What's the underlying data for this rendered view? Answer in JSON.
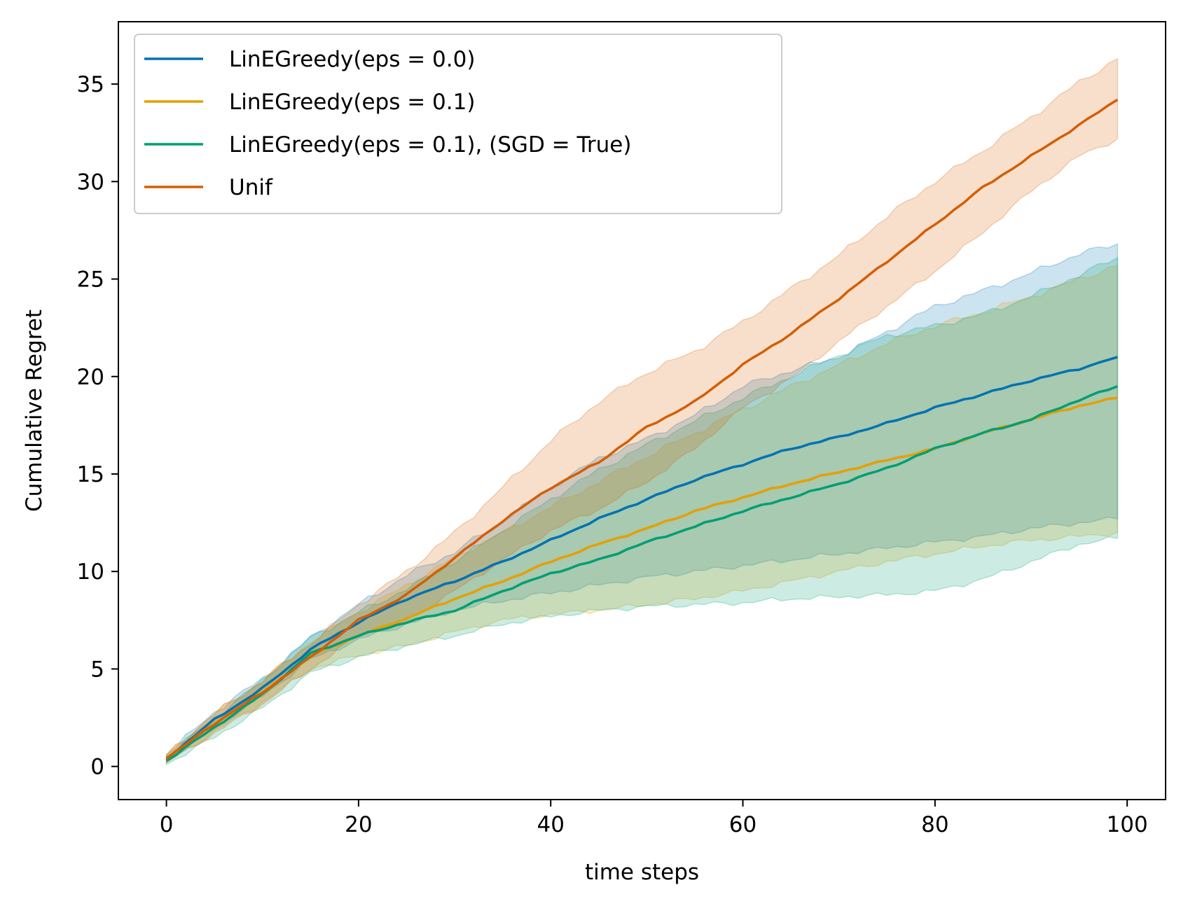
{
  "chart_data": {
    "type": "line",
    "title": "",
    "xlabel": "time steps",
    "ylabel": "Cumulative Regret",
    "xlim": [
      -5,
      104
    ],
    "ylim": [
      -1.7,
      38.2
    ],
    "xticks": [
      0,
      20,
      40,
      60,
      80,
      100
    ],
    "yticks": [
      0,
      5,
      10,
      15,
      20,
      25,
      30,
      35
    ],
    "grid": false,
    "legend_position": "upper-left",
    "x_range": [
      0,
      99
    ],
    "series": [
      {
        "name": "LinEGreedy(eps = 0.0)",
        "color": "#0072b2",
        "mean_points": [
          [
            0,
            0.4
          ],
          [
            5,
            2.4
          ],
          [
            10,
            4.0
          ],
          [
            15,
            6.0
          ],
          [
            20,
            7.4
          ],
          [
            25,
            8.6
          ],
          [
            30,
            9.5
          ],
          [
            35,
            10.5
          ],
          [
            40,
            11.6
          ],
          [
            45,
            12.7
          ],
          [
            50,
            13.7
          ],
          [
            55,
            14.7
          ],
          [
            60,
            15.5
          ],
          [
            65,
            16.3
          ],
          [
            70,
            16.9
          ],
          [
            75,
            17.6
          ],
          [
            80,
            18.4
          ],
          [
            85,
            19.1
          ],
          [
            90,
            19.8
          ],
          [
            95,
            20.4
          ],
          [
            99,
            21.0
          ]
        ],
        "band_upper": [
          [
            0,
            0.6
          ],
          [
            5,
            2.8
          ],
          [
            10,
            4.5
          ],
          [
            15,
            6.6
          ],
          [
            20,
            8.3
          ],
          [
            25,
            9.8
          ],
          [
            30,
            11.0
          ],
          [
            35,
            12.6
          ],
          [
            40,
            14.3
          ],
          [
            45,
            15.8
          ],
          [
            50,
            16.8
          ],
          [
            55,
            18.0
          ],
          [
            60,
            19.5
          ],
          [
            65,
            20.3
          ],
          [
            70,
            21.0
          ],
          [
            75,
            22.3
          ],
          [
            80,
            23.6
          ],
          [
            85,
            24.4
          ],
          [
            90,
            25.3
          ],
          [
            95,
            26.3
          ],
          [
            99,
            26.8
          ]
        ],
        "band_lower": [
          [
            0,
            0.2
          ],
          [
            5,
            2.0
          ],
          [
            10,
            3.6
          ],
          [
            15,
            5.5
          ],
          [
            20,
            6.5
          ],
          [
            25,
            7.3
          ],
          [
            30,
            8.0
          ],
          [
            35,
            8.5
          ],
          [
            40,
            8.9
          ],
          [
            45,
            9.3
          ],
          [
            50,
            9.7
          ],
          [
            55,
            10.0
          ],
          [
            60,
            10.3
          ],
          [
            65,
            10.6
          ],
          [
            70,
            10.9
          ],
          [
            75,
            11.2
          ],
          [
            80,
            11.5
          ],
          [
            85,
            11.8
          ],
          [
            90,
            12.2
          ],
          [
            95,
            12.5
          ],
          [
            99,
            12.7
          ]
        ]
      },
      {
        "name": "LinEGreedy(eps = 0.1)",
        "color": "#e69f00",
        "mean_points": [
          [
            0,
            0.4
          ],
          [
            5,
            2.2
          ],
          [
            10,
            3.8
          ],
          [
            15,
            5.7
          ],
          [
            20,
            6.7
          ],
          [
            25,
            7.6
          ],
          [
            30,
            8.6
          ],
          [
            35,
            9.5
          ],
          [
            40,
            10.5
          ],
          [
            45,
            11.4
          ],
          [
            50,
            12.2
          ],
          [
            55,
            13.1
          ],
          [
            60,
            13.8
          ],
          [
            65,
            14.5
          ],
          [
            70,
            15.1
          ],
          [
            75,
            15.7
          ],
          [
            80,
            16.3
          ],
          [
            85,
            17.1
          ],
          [
            90,
            17.8
          ],
          [
            95,
            18.5
          ],
          [
            99,
            18.9
          ]
        ],
        "band_upper": [
          [
            0,
            0.6
          ],
          [
            5,
            2.7
          ],
          [
            10,
            4.4
          ],
          [
            15,
            6.4
          ],
          [
            20,
            7.9
          ],
          [
            25,
            9.3
          ],
          [
            30,
            10.7
          ],
          [
            35,
            12.0
          ],
          [
            40,
            13.3
          ],
          [
            45,
            14.6
          ],
          [
            50,
            15.9
          ],
          [
            55,
            17.1
          ],
          [
            60,
            18.3
          ],
          [
            65,
            19.5
          ],
          [
            70,
            20.6
          ],
          [
            75,
            21.7
          ],
          [
            80,
            22.6
          ],
          [
            85,
            23.3
          ],
          [
            90,
            24.1
          ],
          [
            95,
            25.0
          ],
          [
            99,
            25.7
          ]
        ],
        "band_lower": [
          [
            0,
            0.2
          ],
          [
            5,
            1.8
          ],
          [
            10,
            3.3
          ],
          [
            15,
            5.0
          ],
          [
            20,
            5.7
          ],
          [
            25,
            6.2
          ],
          [
            30,
            6.9
          ],
          [
            35,
            7.5
          ],
          [
            40,
            7.8
          ],
          [
            45,
            8.0
          ],
          [
            50,
            8.3
          ],
          [
            55,
            8.6
          ],
          [
            60,
            9.0
          ],
          [
            65,
            9.5
          ],
          [
            70,
            10.0
          ],
          [
            75,
            10.5
          ],
          [
            80,
            10.9
          ],
          [
            85,
            11.3
          ],
          [
            90,
            11.6
          ],
          [
            95,
            11.8
          ],
          [
            99,
            12.0
          ]
        ]
      },
      {
        "name": "LinEGreedy(eps = 0.1), (SGD = True)",
        "color": "#009e73",
        "mean_points": [
          [
            0,
            0.3
          ],
          [
            5,
            2.0
          ],
          [
            10,
            3.7
          ],
          [
            15,
            5.8
          ],
          [
            20,
            6.7
          ],
          [
            25,
            7.4
          ],
          [
            30,
            8.0
          ],
          [
            35,
            9.0
          ],
          [
            40,
            9.9
          ],
          [
            45,
            10.6
          ],
          [
            50,
            11.5
          ],
          [
            55,
            12.3
          ],
          [
            60,
            13.1
          ],
          [
            65,
            13.8
          ],
          [
            70,
            14.5
          ],
          [
            75,
            15.3
          ],
          [
            80,
            16.3
          ],
          [
            85,
            17.1
          ],
          [
            90,
            17.8
          ],
          [
            95,
            18.8
          ],
          [
            99,
            19.5
          ]
        ],
        "band_upper": [
          [
            0,
            0.5
          ],
          [
            5,
            2.5
          ],
          [
            10,
            4.4
          ],
          [
            15,
            6.6
          ],
          [
            20,
            7.9
          ],
          [
            25,
            9.1
          ],
          [
            30,
            10.5
          ],
          [
            35,
            12.1
          ],
          [
            40,
            13.7
          ],
          [
            45,
            15.2
          ],
          [
            50,
            16.5
          ],
          [
            55,
            17.7
          ],
          [
            60,
            18.9
          ],
          [
            65,
            20.0
          ],
          [
            70,
            21.1
          ],
          [
            75,
            22.1
          ],
          [
            80,
            22.6
          ],
          [
            85,
            23.2
          ],
          [
            90,
            24.1
          ],
          [
            95,
            25.2
          ],
          [
            99,
            26.1
          ]
        ],
        "band_lower": [
          [
            0,
            0.1
          ],
          [
            5,
            1.5
          ],
          [
            10,
            3.0
          ],
          [
            15,
            4.8
          ],
          [
            20,
            5.6
          ],
          [
            25,
            6.2
          ],
          [
            30,
            6.7
          ],
          [
            35,
            7.3
          ],
          [
            40,
            7.7
          ],
          [
            45,
            8.0
          ],
          [
            50,
            8.2
          ],
          [
            55,
            8.3
          ],
          [
            60,
            8.4
          ],
          [
            65,
            8.6
          ],
          [
            70,
            8.7
          ],
          [
            75,
            8.8
          ],
          [
            80,
            9.0
          ],
          [
            85,
            9.6
          ],
          [
            90,
            10.5
          ],
          [
            95,
            11.4
          ],
          [
            99,
            11.7
          ]
        ]
      },
      {
        "name": "Unif",
        "color": "#d55e00",
        "mean_points": [
          [
            0,
            0.4
          ],
          [
            5,
            2.2
          ],
          [
            10,
            3.8
          ],
          [
            15,
            5.6
          ],
          [
            20,
            7.5
          ],
          [
            25,
            8.8
          ],
          [
            30,
            10.7
          ],
          [
            35,
            12.6
          ],
          [
            40,
            14.3
          ],
          [
            45,
            15.6
          ],
          [
            50,
            17.4
          ],
          [
            55,
            18.7
          ],
          [
            60,
            20.6
          ],
          [
            65,
            22.2
          ],
          [
            70,
            24.0
          ],
          [
            75,
            25.9
          ],
          [
            80,
            27.8
          ],
          [
            85,
            29.7
          ],
          [
            90,
            31.3
          ],
          [
            95,
            32.9
          ],
          [
            99,
            34.2
          ]
        ],
        "band_upper": [
          [
            0,
            0.6
          ],
          [
            5,
            2.7
          ],
          [
            10,
            4.4
          ],
          [
            15,
            6.3
          ],
          [
            20,
            8.3
          ],
          [
            25,
            10.0
          ],
          [
            30,
            12.0
          ],
          [
            35,
            14.3
          ],
          [
            40,
            16.7
          ],
          [
            45,
            18.7
          ],
          [
            50,
            20.2
          ],
          [
            55,
            21.3
          ],
          [
            60,
            22.8
          ],
          [
            65,
            24.5
          ],
          [
            70,
            26.2
          ],
          [
            75,
            28.2
          ],
          [
            80,
            30.0
          ],
          [
            85,
            31.6
          ],
          [
            90,
            33.3
          ],
          [
            95,
            35.1
          ],
          [
            99,
            36.3
          ]
        ],
        "band_lower": [
          [
            0,
            0.2
          ],
          [
            5,
            1.7
          ],
          [
            10,
            3.2
          ],
          [
            15,
            5.0
          ],
          [
            20,
            6.7
          ],
          [
            25,
            7.5
          ],
          [
            30,
            9.0
          ],
          [
            35,
            10.6
          ],
          [
            40,
            12.1
          ],
          [
            45,
            13.2
          ],
          [
            50,
            14.6
          ],
          [
            55,
            16.3
          ],
          [
            60,
            18.4
          ],
          [
            65,
            19.9
          ],
          [
            70,
            21.8
          ],
          [
            75,
            23.6
          ],
          [
            80,
            25.4
          ],
          [
            85,
            27.4
          ],
          [
            90,
            29.5
          ],
          [
            95,
            31.3
          ],
          [
            99,
            32.2
          ]
        ]
      }
    ]
  }
}
